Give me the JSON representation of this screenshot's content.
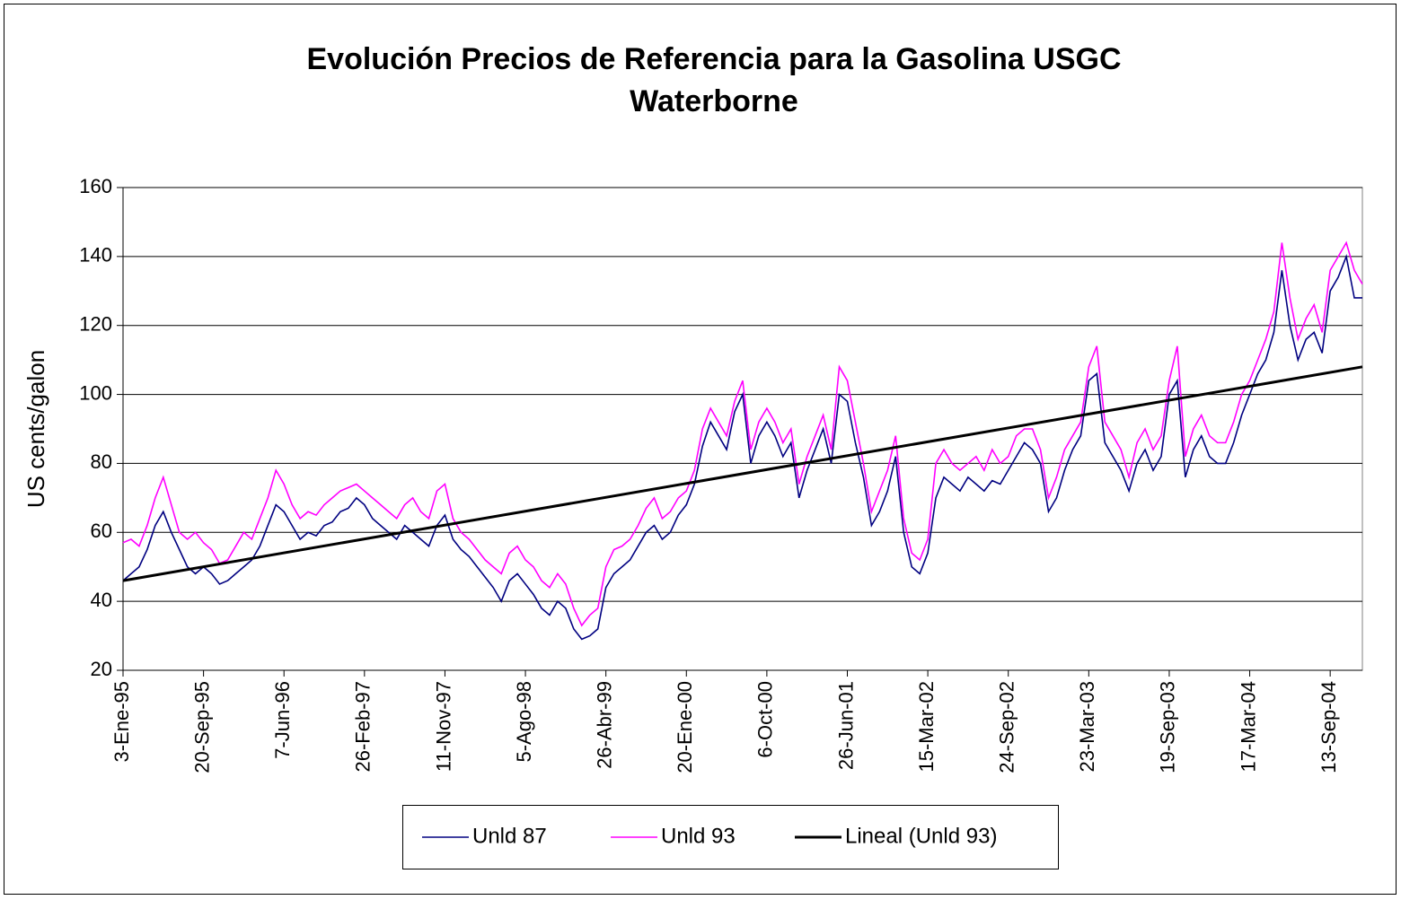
{
  "chart_data": {
    "type": "line",
    "title": "Evolución Precios de Referencia para la Gasolina USGC",
    "subtitle": "Waterborne",
    "y_label": "US cents/galon",
    "ylim": [
      20,
      160
    ],
    "yticks": [
      20,
      40,
      60,
      80,
      100,
      120,
      140,
      160
    ],
    "grid": true,
    "legend": "bottom",
    "categories": [
      "3-Ene-95",
      null,
      null,
      null,
      null,
      null,
      null,
      null,
      null,
      null,
      "20-Sep-95",
      null,
      null,
      null,
      null,
      null,
      null,
      null,
      null,
      null,
      "7-Jun-96",
      null,
      null,
      null,
      null,
      null,
      null,
      null,
      null,
      null,
      "26-Feb-97",
      null,
      null,
      null,
      null,
      null,
      null,
      null,
      null,
      null,
      "11-Nov-97",
      null,
      null,
      null,
      null,
      null,
      null,
      null,
      null,
      null,
      "5-Ago-98",
      null,
      null,
      null,
      null,
      null,
      null,
      null,
      null,
      null,
      "26-Abr-99",
      null,
      null,
      null,
      null,
      null,
      null,
      null,
      null,
      null,
      "20-Ene-00",
      null,
      null,
      null,
      null,
      null,
      null,
      null,
      null,
      null,
      "6-Oct-00",
      null,
      null,
      null,
      null,
      null,
      null,
      null,
      null,
      null,
      "26-Jun-01",
      null,
      null,
      null,
      null,
      null,
      null,
      null,
      null,
      null,
      "15-Mar-02",
      null,
      null,
      null,
      null,
      null,
      null,
      null,
      null,
      null,
      "24-Sep-02",
      null,
      null,
      null,
      null,
      null,
      null,
      null,
      null,
      null,
      "23-Mar-03",
      null,
      null,
      null,
      null,
      null,
      null,
      null,
      null,
      null,
      "19-Sep-03",
      null,
      null,
      null,
      null,
      null,
      null,
      null,
      null,
      null,
      "17-Mar-04",
      null,
      null,
      null,
      null,
      null,
      null,
      null,
      null,
      null,
      "13-Sep-04",
      null,
      null,
      null,
      null
    ],
    "series": [
      {
        "name": "Unld 87",
        "color": "#000080",
        "values": [
          46,
          48,
          50,
          55,
          62,
          66,
          60,
          55,
          50,
          48,
          50,
          48,
          45,
          46,
          48,
          50,
          52,
          56,
          62,
          68,
          66,
          62,
          58,
          60,
          59,
          62,
          63,
          66,
          67,
          70,
          68,
          64,
          62,
          60,
          58,
          62,
          60,
          58,
          56,
          62,
          65,
          58,
          55,
          53,
          50,
          47,
          44,
          40,
          46,
          48,
          45,
          42,
          38,
          36,
          40,
          38,
          32,
          29,
          30,
          32,
          44,
          48,
          50,
          52,
          56,
          60,
          62,
          58,
          60,
          65,
          68,
          74,
          85,
          92,
          88,
          84,
          95,
          100,
          80,
          88,
          92,
          88,
          82,
          86,
          70,
          78,
          84,
          90,
          80,
          100,
          98,
          86,
          76,
          62,
          66,
          72,
          82,
          60,
          50,
          48,
          54,
          70,
          76,
          74,
          72,
          76,
          74,
          72,
          75,
          74,
          78,
          82,
          86,
          84,
          80,
          66,
          70,
          78,
          84,
          88,
          104,
          106,
          86,
          82,
          78,
          72,
          80,
          84,
          78,
          82,
          100,
          104,
          76,
          84,
          88,
          82,
          80,
          80,
          86,
          94,
          100,
          106,
          110,
          118,
          136,
          120,
          110,
          116,
          118,
          112,
          130,
          134,
          140,
          128,
          128
        ]
      },
      {
        "name": "Unld 93",
        "color": "#ff00ff",
        "values": [
          57,
          58,
          56,
          62,
          70,
          76,
          68,
          60,
          58,
          60,
          57,
          55,
          51,
          52,
          56,
          60,
          58,
          64,
          70,
          78,
          74,
          68,
          64,
          66,
          65,
          68,
          70,
          72,
          73,
          74,
          72,
          70,
          68,
          66,
          64,
          68,
          70,
          66,
          64,
          72,
          74,
          64,
          60,
          58,
          55,
          52,
          50,
          48,
          54,
          56,
          52,
          50,
          46,
          44,
          48,
          45,
          38,
          33,
          36,
          38,
          50,
          55,
          56,
          58,
          62,
          67,
          70,
          64,
          66,
          70,
          72,
          78,
          90,
          96,
          92,
          88,
          98,
          104,
          84,
          92,
          96,
          92,
          86,
          90,
          74,
          82,
          88,
          94,
          84,
          108,
          104,
          92,
          80,
          66,
          72,
          78,
          88,
          64,
          54,
          52,
          58,
          80,
          84,
          80,
          78,
          80,
          82,
          78,
          84,
          80,
          82,
          88,
          90,
          90,
          84,
          70,
          76,
          84,
          88,
          92,
          108,
          114,
          92,
          88,
          84,
          76,
          86,
          90,
          84,
          88,
          104,
          114,
          82,
          90,
          94,
          88,
          86,
          86,
          92,
          100,
          104,
          110,
          116,
          124,
          144,
          128,
          116,
          122,
          126,
          118,
          136,
          140,
          144,
          136,
          132
        ]
      }
    ],
    "trendline": {
      "name": "Lineal (Unld 93)",
      "color": "#000000",
      "values": [
        46,
        108
      ]
    }
  }
}
